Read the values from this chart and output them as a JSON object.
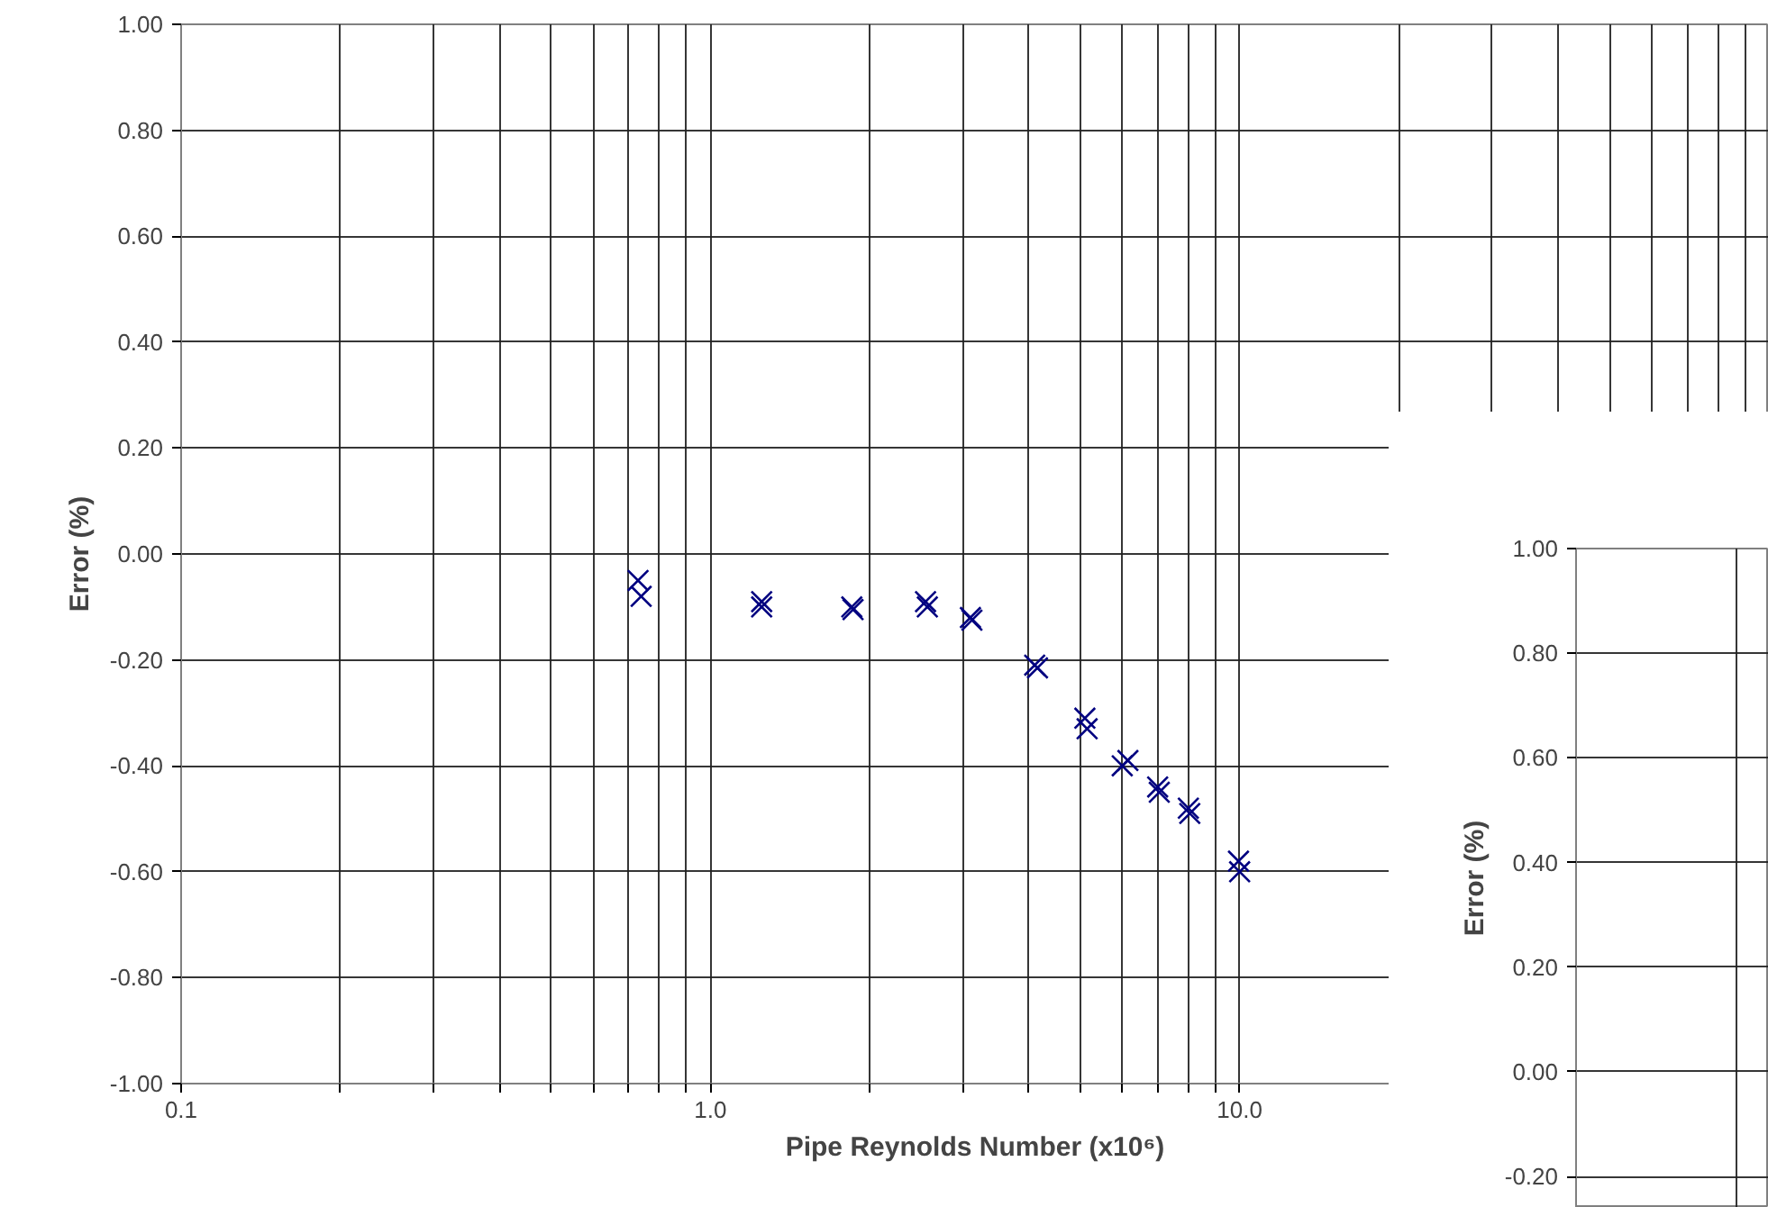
{
  "chart_data": [
    {
      "type": "scatter",
      "xlabel": "Pipe Reynolds Number (x10⁶)",
      "ylabel": "Error (%)",
      "log": "x",
      "marker": "cross",
      "grid": true,
      "x": [
        0.73,
        0.74,
        1.25,
        1.25,
        1.85,
        1.86,
        2.55,
        2.57,
        3.1,
        3.12,
        4.1,
        4.15,
        5.1,
        5.15,
        6.0,
        6.15,
        7.0,
        7.05,
        8.0,
        8.05,
        9.95,
        10.0
      ],
      "series": [
        {
          "color": "#000080",
          "values": [
            -0.05,
            -0.08,
            -0.09,
            -0.1,
            -0.1,
            -0.105,
            -0.09,
            -0.1,
            -0.12,
            -0.125,
            -0.21,
            -0.215,
            -0.31,
            -0.33,
            -0.4,
            -0.39,
            -0.44,
            -0.45,
            -0.48,
            -0.49,
            -0.58,
            -0.6
          ]
        }
      ],
      "xlim": [
        0.1,
        100
      ],
      "xticks": [
        0.1,
        {
          "value": 0.2,
          "label": null
        },
        {
          "value": 0.3,
          "label": null
        },
        {
          "value": 0.4,
          "label": null
        },
        {
          "value": 0.5,
          "label": null
        },
        {
          "value": 0.6,
          "label": null
        },
        {
          "value": 0.7,
          "label": null
        },
        {
          "value": 0.8,
          "label": null
        },
        {
          "value": 0.9,
          "label": null
        },
        {
          "value": 1,
          "label": "1.0"
        },
        {
          "value": 2,
          "label": null
        },
        {
          "value": 3,
          "label": null
        },
        {
          "value": 4,
          "label": null
        },
        {
          "value": 5,
          "label": null
        },
        {
          "value": 6,
          "label": null
        },
        {
          "value": 7,
          "label": null
        },
        {
          "value": 8,
          "label": null
        },
        {
          "value": 9,
          "label": null
        },
        {
          "value": 10,
          "label": "10.0"
        },
        {
          "value": 20,
          "label": null
        },
        {
          "value": 30,
          "label": null
        },
        {
          "value": 40,
          "label": null
        },
        {
          "value": 50,
          "label": null
        },
        {
          "value": 60,
          "label": null
        },
        {
          "value": 70,
          "label": null
        },
        {
          "value": 80,
          "label": null
        },
        {
          "value": 90,
          "label": null
        }
      ],
      "ylim": [
        -1,
        1
      ],
      "yticks": [
        {
          "value": -1,
          "label": "-1.00"
        },
        {
          "value": -0.8,
          "label": "-0.80"
        },
        {
          "value": -0.6,
          "label": "-0.60"
        },
        {
          "value": -0.4,
          "label": "-0.40"
        },
        {
          "value": -0.2,
          "label": "-0.20"
        },
        {
          "value": 0,
          "label": "0.00"
        },
        {
          "value": 0.2,
          "label": "0.20"
        },
        {
          "value": 0.4,
          "label": "0.40"
        },
        {
          "value": 0.6,
          "label": "0.60"
        },
        {
          "value": 0.8,
          "label": "0.80"
        },
        {
          "value": 1,
          "label": "1.00"
        }
      ]
    },
    {
      "type": "scatter",
      "ylabel": "Error (%)",
      "grid": true,
      "tick_labels": "y",
      "categories": [
        null
      ],
      "values": [
        null
      ],
      "ylim": [
        -0.26,
        1
      ],
      "yticks": [
        {
          "value": -0.2,
          "label": "-0.20"
        },
        {
          "value": 0,
          "label": "0.00"
        },
        {
          "value": 0.2,
          "label": "0.20"
        },
        {
          "value": 0.4,
          "label": "0.40"
        },
        {
          "value": 0.6,
          "label": "0.60"
        },
        {
          "value": 0.8,
          "label": "0.80"
        },
        {
          "value": 1,
          "label": "1.00"
        }
      ]
    }
  ]
}
